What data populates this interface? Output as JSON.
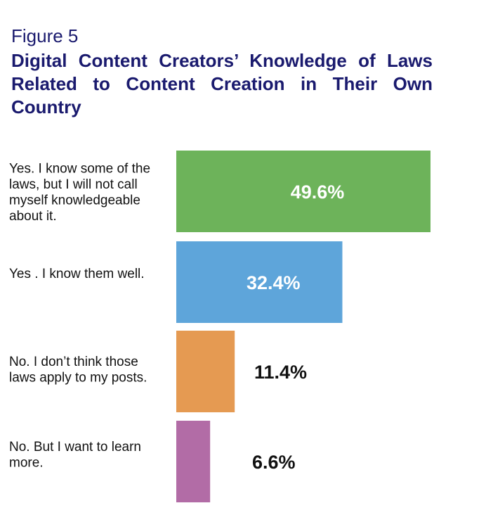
{
  "figure_label": "Figure 5",
  "chart_data": {
    "type": "bar",
    "orientation": "horizontal",
    "title": "Digital Content Creators’ Knowledge of Laws Related to Content Creation in Their Own Country",
    "categories": [
      [
        "Yes. I know some of the",
        "laws, but I will not call",
        "myself knowledgeable",
        "about it."
      ],
      [
        "Yes . I know them well."
      ],
      [
        "No. I don’t think those",
        "laws apply to my posts."
      ],
      [
        "No. But I want to learn",
        "more."
      ]
    ],
    "values": [
      49.6,
      32.4,
      11.4,
      6.6
    ],
    "value_labels": [
      "49.6%",
      "32.4%",
      "11.4%",
      "6.6%"
    ],
    "colors": [
      "#6db35a",
      "#5ea5da",
      "#e59a52",
      "#b26ca6"
    ],
    "xlim": [
      0,
      49.6
    ],
    "grid": false,
    "legend": "none"
  }
}
